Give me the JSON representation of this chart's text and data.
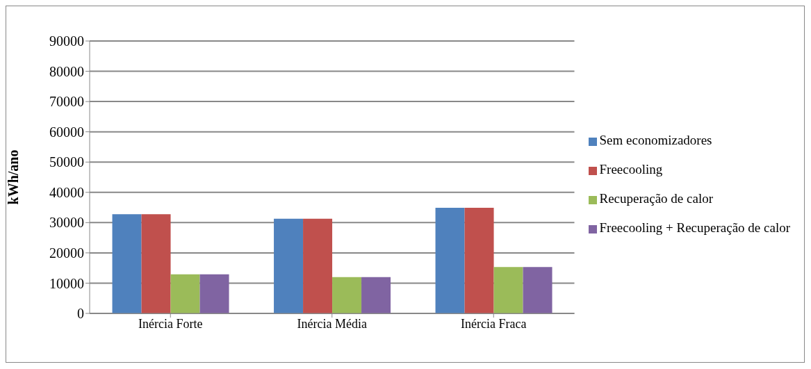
{
  "chart_data": {
    "type": "bar",
    "ylabel": "kWh/ano",
    "categories": [
      "Inércia Forte",
      "Inércia Média",
      "Inércia Fraca"
    ],
    "series": [
      {
        "name": "Sem economizadores",
        "color": "#4f81bd",
        "values": [
          32800,
          31300,
          34900
        ]
      },
      {
        "name": "Freecooling",
        "color": "#c0504d",
        "values": [
          32800,
          31300,
          34900
        ]
      },
      {
        "name": "Recuperação de calor",
        "color": "#9bbb59",
        "values": [
          12900,
          12000,
          15300
        ]
      },
      {
        "name": "Freecooling + Recuperação de calor",
        "color": "#8064a2",
        "values": [
          12900,
          12000,
          15300
        ]
      }
    ],
    "ylim": [
      0,
      90000
    ],
    "yticks": [
      0,
      10000,
      20000,
      30000,
      40000,
      50000,
      60000,
      70000,
      80000,
      90000
    ],
    "grid": "y",
    "legend": "right"
  }
}
